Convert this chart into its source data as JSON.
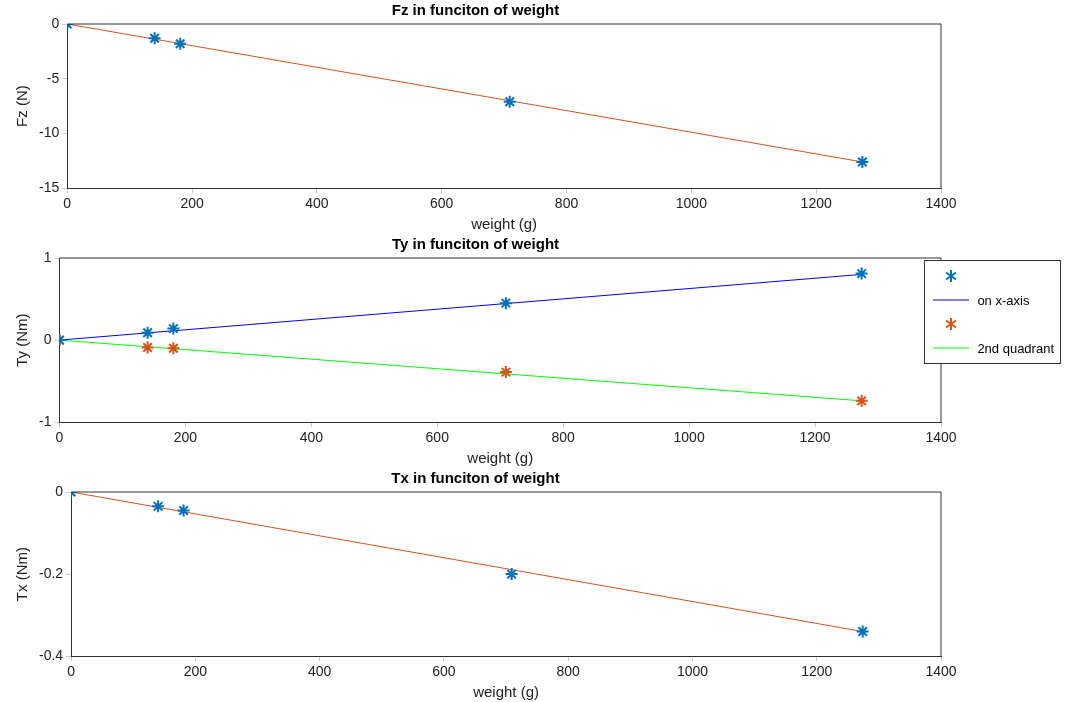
{
  "chart_data": [
    {
      "type": "scatter",
      "title": "Fz in funciton of weight",
      "xlabel": "weight (g)",
      "ylabel": "Fz (N)",
      "xlim": [
        0,
        1400
      ],
      "xticks": [
        0,
        200,
        400,
        600,
        800,
        1000,
        1200,
        1400
      ],
      "ylim": [
        -15,
        0
      ],
      "yticks": [
        -15,
        -10,
        -5,
        0
      ],
      "grid": false,
      "legend": false,
      "series": [
        {
          "marker": "cross",
          "color": "#0072bd",
          "x": [
            0,
            140,
            181,
            709,
            1274
          ],
          "values": [
            0,
            -1.3,
            -1.8,
            -7.1,
            -12.6
          ]
        },
        {
          "type": "line",
          "marker": "none",
          "color": "#d95319",
          "x": [
            0,
            1274
          ],
          "values": [
            0,
            -12.6
          ]
        }
      ]
    },
    {
      "type": "scatter",
      "title": "Ty in funciton of weight",
      "xlabel": "weight (g)",
      "ylabel": "Ty (Nm)",
      "xlim": [
        0,
        1400
      ],
      "xticks": [
        0,
        200,
        400,
        600,
        800,
        1000,
        1200,
        1400
      ],
      "ylim": [
        -1,
        1
      ],
      "yticks": [
        -1,
        0,
        1
      ],
      "grid": false,
      "legend": "top right",
      "series": [
        {
          "marker": "cross",
          "color": "#0072bd",
          "x": [
            0,
            140,
            181,
            709,
            1274
          ],
          "values": [
            0,
            0.09,
            0.14,
            0.45,
            0.81
          ]
        },
        {
          "type": "line",
          "name": "on x-axis",
          "marker": "none",
          "color": "#0000ff",
          "x": [
            0,
            1274
          ],
          "values": [
            0,
            0.8
          ]
        },
        {
          "marker": "cross",
          "color": "#d95319",
          "x": [
            0,
            140,
            181,
            709,
            1274
          ],
          "values": [
            0,
            -0.09,
            -0.1,
            -0.39,
            -0.74
          ]
        },
        {
          "type": "line",
          "name": "2nd quadrant",
          "marker": "none",
          "color": "#00ff00",
          "x": [
            0,
            1274
          ],
          "values": [
            0,
            -0.74
          ]
        }
      ]
    },
    {
      "type": "scatter",
      "title": "Tx in funciton of weight",
      "xlabel": "weight (g)",
      "ylabel": "Tx (Nm)",
      "xlim": [
        0,
        1400
      ],
      "xticks": [
        0,
        200,
        400,
        600,
        800,
        1000,
        1200,
        1400
      ],
      "ylim": [
        -0.4,
        0
      ],
      "yticks": [
        -0.4,
        -0.2,
        0
      ],
      "grid": false,
      "legend": false,
      "series": [
        {
          "marker": "cross",
          "color": "#0072bd",
          "x": [
            0,
            140,
            181,
            709,
            1274
          ],
          "values": [
            0,
            -0.035,
            -0.045,
            -0.2,
            -0.34
          ]
        },
        {
          "type": "line",
          "marker": "none",
          "color": "#d95319",
          "x": [
            0,
            1274
          ],
          "values": [
            0,
            -0.34
          ]
        }
      ]
    }
  ]
}
